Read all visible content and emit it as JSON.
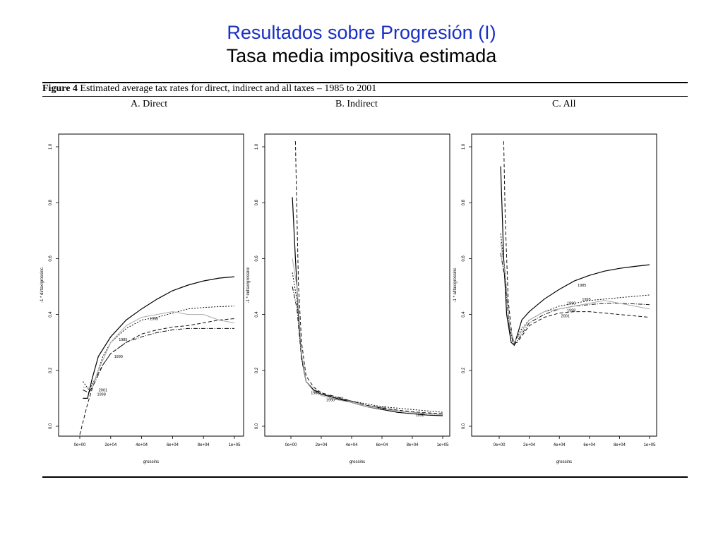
{
  "slide": {
    "title": "Resultados sobre Progresión (I)",
    "subtitle": "Tasa media impositiva estimada"
  },
  "figure": {
    "caption_bold": "Figure 4",
    "caption_text": " Estimated average tax rates for direct, indirect and all taxes – 1985 to 2001"
  },
  "chart_data": [
    {
      "type": "line",
      "panel_label": "A. Direct",
      "xlabel": "grossinc",
      "ylabel": "-1 * dirtax/grossinc",
      "xlim": [
        0,
        100000
      ],
      "ylim": [
        0,
        1
      ],
      "xticks": [
        "0e+00",
        "2e+04",
        "4e+04",
        "6e+04",
        "8e+04",
        "1e+05"
      ],
      "yticks": [
        "0.0",
        "0.2",
        "0.4",
        "0.6",
        "0.8",
        "1.0"
      ],
      "series": [
        {
          "name": "1985",
          "style": "solid",
          "color": "#000000",
          "points": [
            [
              2000,
              0.1
            ],
            [
              5000,
              0.1
            ],
            [
              8000,
              0.17
            ],
            [
              12000,
              0.25
            ],
            [
              20000,
              0.32
            ],
            [
              30000,
              0.38
            ],
            [
              40000,
              0.42
            ],
            [
              50000,
              0.455
            ],
            [
              60000,
              0.485
            ],
            [
              70000,
              0.505
            ],
            [
              80000,
              0.52
            ],
            [
              90000,
              0.53
            ],
            [
              100000,
              0.535
            ]
          ]
        },
        {
          "name": "1995",
          "style": "dotted",
          "color": "#111111",
          "points": [
            [
              2000,
              0.16
            ],
            [
              6000,
              0.13
            ],
            [
              10000,
              0.17
            ],
            [
              15000,
              0.25
            ],
            [
              20000,
              0.3
            ],
            [
              30000,
              0.35
            ],
            [
              40000,
              0.38
            ],
            [
              50000,
              0.39
            ],
            [
              60000,
              0.405
            ],
            [
              70000,
              0.42
            ],
            [
              80000,
              0.425
            ],
            [
              90000,
              0.428
            ],
            [
              100000,
              0.43
            ]
          ]
        },
        {
          "name": "1990",
          "style": "dashed",
          "color": "#111111",
          "points": [
            [
              0,
              -0.03
            ],
            [
              5000,
              0.08
            ],
            [
              10000,
              0.17
            ],
            [
              15000,
              0.22
            ],
            [
              20000,
              0.26
            ],
            [
              30000,
              0.3
            ],
            [
              40000,
              0.33
            ],
            [
              50000,
              0.345
            ],
            [
              60000,
              0.355
            ],
            [
              70000,
              0.36
            ],
            [
              80000,
              0.37
            ],
            [
              90000,
              0.38
            ],
            [
              100000,
              0.385
            ]
          ]
        },
        {
          "name": "2001",
          "style": "dashdot",
          "color": "#111111",
          "points": [
            [
              2000,
              0.13
            ],
            [
              6000,
              0.12
            ],
            [
              10000,
              0.16
            ],
            [
              15000,
              0.22
            ],
            [
              20000,
              0.26
            ],
            [
              30000,
              0.3
            ],
            [
              40000,
              0.32
            ],
            [
              50000,
              0.335
            ],
            [
              60000,
              0.345
            ],
            [
              70000,
              0.35
            ],
            [
              80000,
              0.35
            ],
            [
              90000,
              0.35
            ],
            [
              100000,
              0.35
            ]
          ]
        },
        {
          "name": "1998",
          "style": "light",
          "color": "#aaaaaa",
          "points": [
            [
              2000,
              0.14
            ],
            [
              8000,
              0.14
            ],
            [
              12000,
              0.2
            ],
            [
              20000,
              0.3
            ],
            [
              30000,
              0.36
            ],
            [
              40000,
              0.39
            ],
            [
              50000,
              0.4
            ],
            [
              60000,
              0.41
            ],
            [
              70000,
              0.4
            ],
            [
              80000,
              0.4
            ],
            [
              90000,
              0.38
            ],
            [
              100000,
              0.37
            ]
          ]
        }
      ],
      "annotations": [
        {
          "text": "1995",
          "x": 48000,
          "y": 0.38
        },
        {
          "text": "1985",
          "x": 28000,
          "y": 0.305
        },
        {
          "text": "1990",
          "x": 25000,
          "y": 0.245
        },
        {
          "text": "2001",
          "x": 15000,
          "y": 0.125
        },
        {
          "text": "1998",
          "x": 14000,
          "y": 0.11
        }
      ]
    },
    {
      "type": "line",
      "panel_label": "B. Indirect",
      "xlabel": "grossinc",
      "ylabel": "-1 * indtax/grossinc",
      "xlim": [
        0,
        100000
      ],
      "ylim": [
        0,
        1
      ],
      "xticks": [
        "0e+00",
        "2e+04",
        "4e+04",
        "6e+04",
        "8e+04",
        "1e+05"
      ],
      "yticks": [
        "0.0",
        "0.2",
        "0.4",
        "0.6",
        "0.8",
        "1.0"
      ],
      "series": [
        {
          "name": "1985",
          "style": "solid",
          "color": "#000000",
          "points": [
            [
              1000,
              0.82
            ],
            [
              3000,
              0.6
            ],
            [
              5000,
              0.4
            ],
            [
              7000,
              0.25
            ],
            [
              10000,
              0.16
            ],
            [
              15000,
              0.13
            ],
            [
              20000,
              0.115
            ],
            [
              30000,
              0.1
            ],
            [
              40000,
              0.085
            ],
            [
              50000,
              0.07
            ],
            [
              60000,
              0.06
            ],
            [
              70000,
              0.05
            ],
            [
              80000,
              0.045
            ],
            [
              90000,
              0.04
            ],
            [
              100000,
              0.038
            ]
          ]
        },
        {
          "name": "1990",
          "style": "dashed",
          "color": "#111111",
          "points": [
            [
              3000,
              1.02
            ],
            [
              4000,
              0.75
            ],
            [
              5000,
              0.5
            ],
            [
              7000,
              0.3
            ],
            [
              10000,
              0.18
            ],
            [
              15000,
              0.14
            ],
            [
              20000,
              0.12
            ],
            [
              30000,
              0.1
            ],
            [
              40000,
              0.09
            ],
            [
              50000,
              0.075
            ],
            [
              60000,
              0.065
            ],
            [
              70000,
              0.058
            ],
            [
              80000,
              0.052
            ],
            [
              90000,
              0.048
            ],
            [
              100000,
              0.045
            ]
          ]
        },
        {
          "name": "1995",
          "style": "dotted",
          "color": "#111111",
          "points": [
            [
              1000,
              0.55
            ],
            [
              4000,
              0.45
            ],
            [
              7000,
              0.25
            ],
            [
              10000,
              0.16
            ],
            [
              15000,
              0.13
            ],
            [
              20000,
              0.115
            ],
            [
              30000,
              0.1
            ],
            [
              40000,
              0.09
            ],
            [
              50000,
              0.08
            ],
            [
              60000,
              0.07
            ],
            [
              70000,
              0.065
            ],
            [
              80000,
              0.06
            ],
            [
              90000,
              0.055
            ],
            [
              100000,
              0.05
            ]
          ]
        },
        {
          "name": "2001",
          "style": "dashdot",
          "color": "#111111",
          "points": [
            [
              1000,
              0.5
            ],
            [
              4000,
              0.42
            ],
            [
              7000,
              0.24
            ],
            [
              10000,
              0.16
            ],
            [
              15000,
              0.13
            ],
            [
              20000,
              0.12
            ],
            [
              30000,
              0.105
            ],
            [
              40000,
              0.09
            ],
            [
              50000,
              0.075
            ],
            [
              60000,
              0.065
            ],
            [
              70000,
              0.055
            ],
            [
              80000,
              0.05
            ],
            [
              90000,
              0.045
            ],
            [
              100000,
              0.042
            ]
          ]
        },
        {
          "name": "1998",
          "style": "light",
          "color": "#aaaaaa",
          "points": [
            [
              1000,
              0.6
            ],
            [
              4000,
              0.5
            ],
            [
              7000,
              0.26
            ],
            [
              10000,
              0.16
            ],
            [
              15000,
              0.125
            ],
            [
              20000,
              0.11
            ],
            [
              30000,
              0.095
            ],
            [
              40000,
              0.085
            ],
            [
              50000,
              0.07
            ],
            [
              60000,
              0.062
            ],
            [
              70000,
              0.055
            ],
            [
              80000,
              0.05
            ],
            [
              90000,
              0.046
            ],
            [
              100000,
              0.042
            ]
          ]
        }
      ],
      "annotations": [
        {
          "text": "1985",
          "x": 16000,
          "y": 0.115
        },
        {
          "text": "1990",
          "x": 26000,
          "y": 0.09
        },
        {
          "text": "2001",
          "x": 32000,
          "y": 0.095
        },
        {
          "text": "1995",
          "x": 60000,
          "y": 0.06
        },
        {
          "text": "1998",
          "x": 85000,
          "y": 0.035
        }
      ]
    },
    {
      "type": "line",
      "panel_label": "C. All",
      "xlabel": "grossinc",
      "ylabel": "-1 * alltax/grossinc",
      "xlim": [
        0,
        100000
      ],
      "ylim": [
        0,
        1
      ],
      "xticks": [
        "0e+00",
        "2e+04",
        "4e+04",
        "6e+04",
        "8e+04",
        "1e+05"
      ],
      "yticks": [
        "0.0",
        "0.2",
        "0.4",
        "0.6",
        "0.8",
        "1.0"
      ],
      "series": [
        {
          "name": "1985",
          "style": "solid",
          "color": "#000000",
          "points": [
            [
              1000,
              0.93
            ],
            [
              3000,
              0.6
            ],
            [
              5000,
              0.4
            ],
            [
              8000,
              0.3
            ],
            [
              10000,
              0.29
            ],
            [
              15000,
              0.38
            ],
            [
              20000,
              0.41
            ],
            [
              30000,
              0.455
            ],
            [
              40000,
              0.49
            ],
            [
              50000,
              0.52
            ],
            [
              60000,
              0.54
            ],
            [
              70000,
              0.555
            ],
            [
              80000,
              0.565
            ],
            [
              90000,
              0.572
            ],
            [
              100000,
              0.578
            ]
          ]
        },
        {
          "name": "1995",
          "style": "dotted",
          "color": "#111111",
          "points": [
            [
              1000,
              0.69
            ],
            [
              4000,
              0.55
            ],
            [
              7000,
              0.35
            ],
            [
              10000,
              0.3
            ],
            [
              15000,
              0.35
            ],
            [
              20000,
              0.38
            ],
            [
              30000,
              0.41
            ],
            [
              40000,
              0.43
            ],
            [
              50000,
              0.44
            ],
            [
              60000,
              0.45
            ],
            [
              70000,
              0.455
            ],
            [
              80000,
              0.46
            ],
            [
              90000,
              0.465
            ],
            [
              100000,
              0.47
            ]
          ]
        },
        {
          "name": "1990",
          "style": "dashed",
          "color": "#111111",
          "points": [
            [
              3000,
              1.02
            ],
            [
              4000,
              0.75
            ],
            [
              6000,
              0.45
            ],
            [
              9000,
              0.3
            ],
            [
              12000,
              0.3
            ],
            [
              20000,
              0.36
            ],
            [
              30000,
              0.39
            ],
            [
              40000,
              0.405
            ],
            [
              50000,
              0.41
            ],
            [
              60000,
              0.41
            ],
            [
              70000,
              0.405
            ],
            [
              80000,
              0.4
            ],
            [
              90000,
              0.395
            ],
            [
              100000,
              0.39
            ]
          ]
        },
        {
          "name": "2001",
          "style": "dashdot",
          "color": "#111111",
          "points": [
            [
              1000,
              0.62
            ],
            [
              4000,
              0.52
            ],
            [
              7000,
              0.34
            ],
            [
              10000,
              0.29
            ],
            [
              15000,
              0.33
            ],
            [
              20000,
              0.37
            ],
            [
              30000,
              0.4
            ],
            [
              40000,
              0.42
            ],
            [
              50000,
              0.43
            ],
            [
              60000,
              0.435
            ],
            [
              70000,
              0.44
            ],
            [
              80000,
              0.44
            ],
            [
              90000,
              0.438
            ],
            [
              100000,
              0.435
            ]
          ]
        },
        {
          "name": "1998",
          "style": "light",
          "color": "#aaaaaa",
          "points": [
            [
              1000,
              0.66
            ],
            [
              4000,
              0.54
            ],
            [
              7000,
              0.36
            ],
            [
              10000,
              0.3
            ],
            [
              15000,
              0.34
            ],
            [
              20000,
              0.38
            ],
            [
              30000,
              0.41
            ],
            [
              40000,
              0.42
            ],
            [
              50000,
              0.43
            ],
            [
              60000,
              0.44
            ],
            [
              70000,
              0.45
            ],
            [
              80000,
              0.44
            ],
            [
              90000,
              0.43
            ],
            [
              100000,
              0.42
            ]
          ]
        }
      ],
      "annotations": [
        {
          "text": "1985",
          "x": 55000,
          "y": 0.5
        },
        {
          "text": "1995",
          "x": 58000,
          "y": 0.45
        },
        {
          "text": "1990",
          "x": 48000,
          "y": 0.435
        },
        {
          "text": "1998",
          "x": 48000,
          "y": 0.41
        },
        {
          "text": "2001",
          "x": 44000,
          "y": 0.39
        }
      ]
    }
  ]
}
